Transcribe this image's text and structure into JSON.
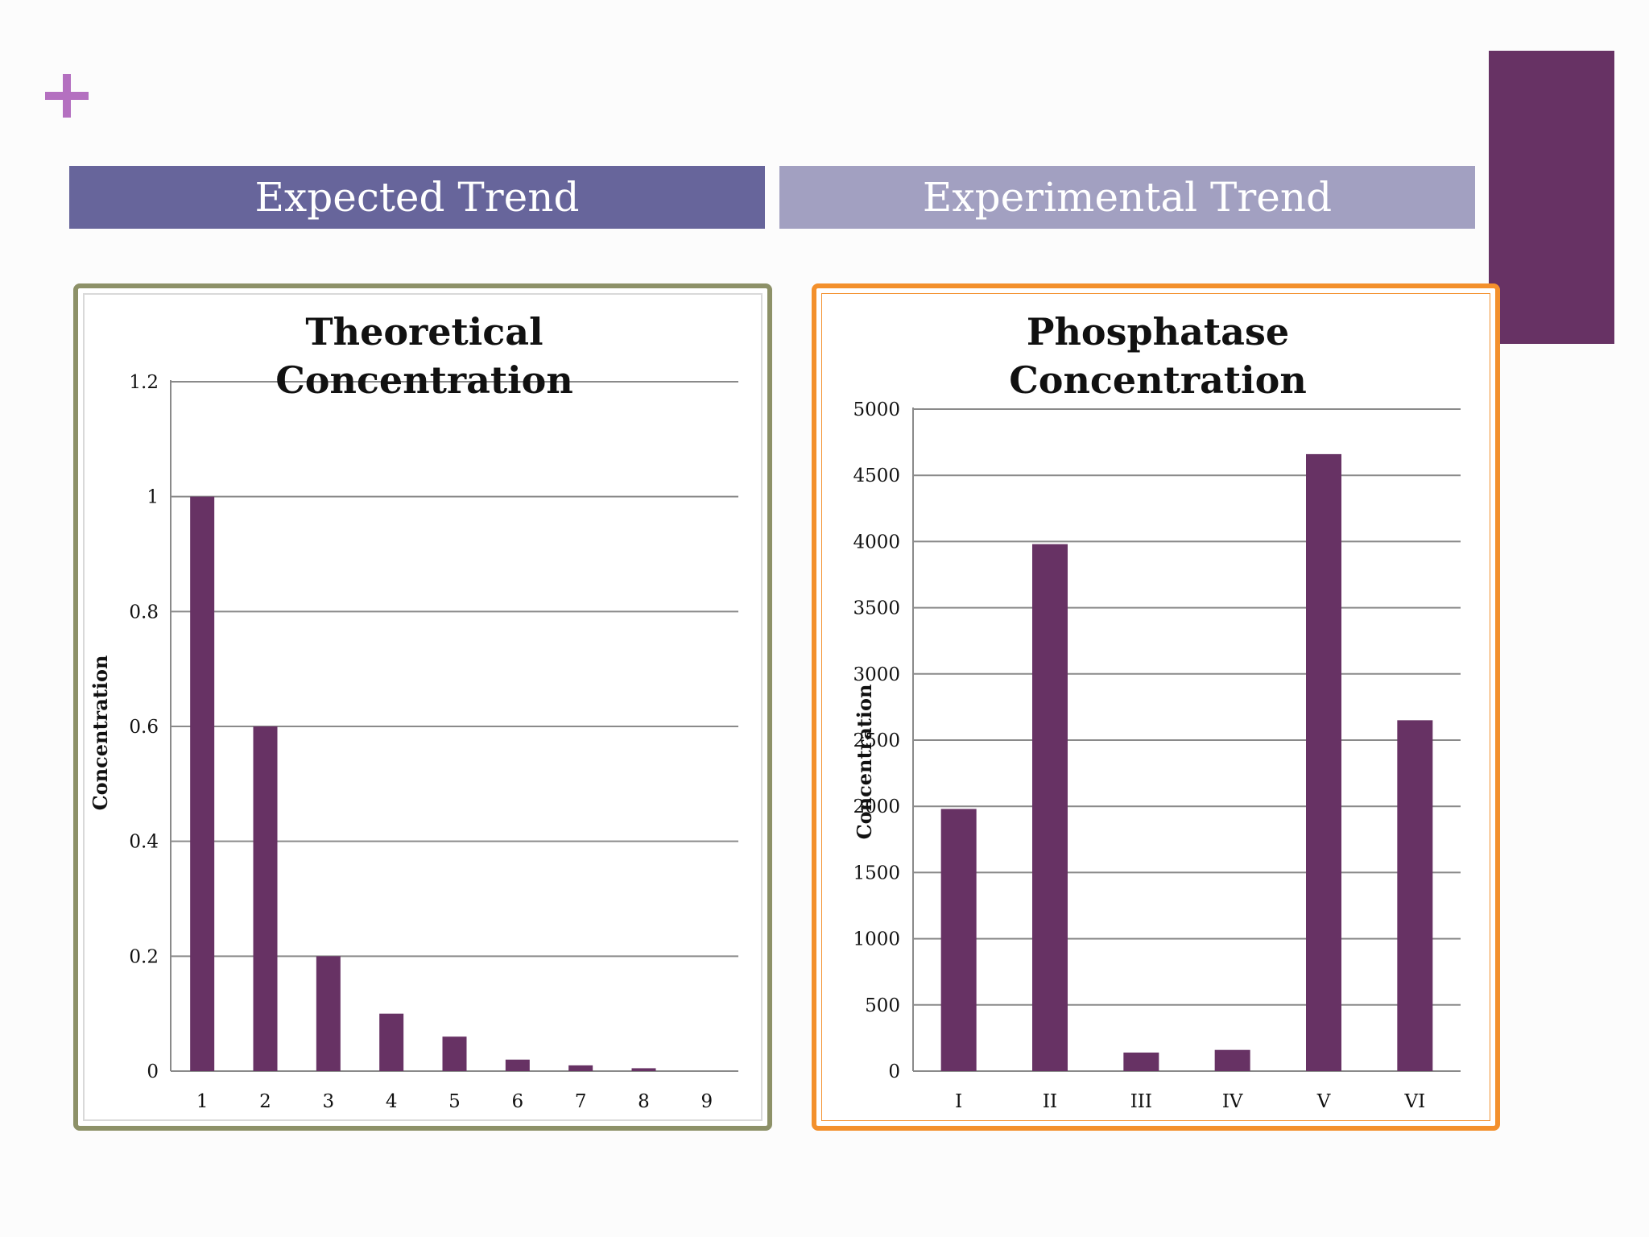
{
  "slide": {
    "banner_left": "Expected Trend",
    "banner_right": "Experimental Trend",
    "colors": {
      "banner_left": "#67659b",
      "banner_right": "#a2a0c1",
      "bar": "#673264",
      "accent": "#b470c0",
      "frame_left": "#8d9168",
      "frame_right": "#f3902c"
    },
    "icons": {
      "plus": "plus-icon"
    }
  },
  "chart_data": [
    {
      "type": "bar",
      "title_lines": [
        "Theoretical",
        "Concentration"
      ],
      "categories": [
        "1",
        "2",
        "3",
        "4",
        "5",
        "6",
        "7",
        "8",
        "9"
      ],
      "values": [
        1,
        0.6,
        0.2,
        0.1,
        0.06,
        0.02,
        0.01,
        0.005,
        0
      ],
      "yticks": [
        "0",
        "0.2",
        "0.4",
        "0.6",
        "0.8",
        "1",
        "1.2"
      ],
      "ylim": [
        0,
        1.2
      ],
      "ylabel": "Concentration",
      "xlabel": "",
      "grid": true
    },
    {
      "type": "bar",
      "title_lines": [
        "Phosphatase",
        "Concentration"
      ],
      "categories": [
        "I",
        "II",
        "III",
        "IV",
        "V",
        "VI"
      ],
      "values": [
        1980,
        3980,
        140,
        160,
        4660,
        2650
      ],
      "yticks": [
        "0",
        "500",
        "1000",
        "1500",
        "2000",
        "2500",
        "3000",
        "3500",
        "4000",
        "4500",
        "5000"
      ],
      "ylim": [
        0,
        5000
      ],
      "ylabel": "Concentration",
      "xlabel": "",
      "grid": true
    }
  ]
}
